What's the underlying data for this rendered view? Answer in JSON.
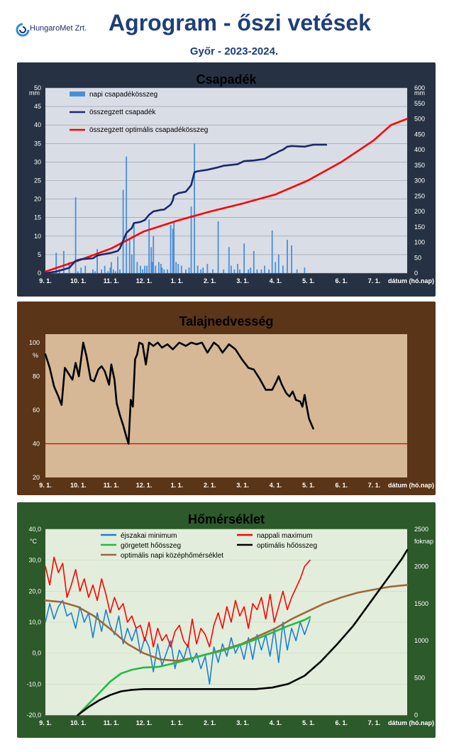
{
  "header": {
    "logo_text": "HungaroMet Zrt.",
    "title": "Agrogram - őszi vetések",
    "subtitle": "Győr - 2023-2024."
  },
  "colors": {
    "title": "#1f3f78",
    "precip_bars": "#4a8fd6",
    "precip_cumulative": "#1a2a6e",
    "precip_optimal": "#ff0000",
    "soil_line": "#000000",
    "soil_threshold": "#dd0000",
    "temp_min": "#1f7fd0",
    "temp_max": "#ff0000",
    "temp_rolling": "#22bb44",
    "temp_optimal_sum": "#000000",
    "temp_optimal_mean": "#a0683a"
  },
  "chart_data": [
    {
      "id": "precip",
      "type": "bar",
      "title": "Csapadék",
      "ylabel_left": "mm",
      "ylabel_right": "mm",
      "xlabel": "dátum (hó.nap)",
      "x_ticks": [
        "9. 1.",
        "10. 1.",
        "11. 1.",
        "12. 1.",
        "1. 1.",
        "2. 1.",
        "3. 1.",
        "4. 1.",
        "5. 1.",
        "6. 1.",
        "7. 1."
      ],
      "ylim_left": [
        0,
        50
      ],
      "yticks_left": [
        "0",
        "5",
        "10",
        "15",
        "20",
        "25",
        "30",
        "35",
        "40",
        "45",
        "50"
      ],
      "ylim_right": [
        0,
        600
      ],
      "yticks_right": [
        "0",
        "50",
        "100",
        "150",
        "200",
        "250",
        "300",
        "350",
        "400",
        "450",
        "500",
        "550",
        "600"
      ],
      "grid": true,
      "legend_position": "top-left",
      "series": [
        {
          "name": "napi csapadékösszeg",
          "type": "bar",
          "axis": "left",
          "x": [
            10,
            13,
            17,
            22,
            28,
            30,
            33,
            37,
            44,
            46,
            48,
            52,
            55,
            58,
            60,
            61,
            63,
            65,
            67,
            69,
            72,
            75,
            78,
            80,
            82,
            85,
            88,
            90,
            92,
            94,
            96,
            98,
            99,
            100,
            102,
            105,
            107,
            108,
            110,
            113,
            116,
            118,
            119,
            121,
            123,
            126,
            130,
            133,
            135,
            138,
            141,
            144,
            146,
            150,
            155,
            160,
            165,
            170,
            172,
            175,
            178,
            180,
            184,
            188,
            190,
            193,
            196,
            200,
            203,
            207,
            210,
            213,
            216,
            220,
            224,
            228,
            233,
            240
          ],
          "y": [
            5.5,
            1.0,
            6.0,
            3.0,
            20.5,
            0.5,
            1.5,
            2.0,
            1.0,
            0.5,
            6.5,
            1.0,
            2.0,
            0.5,
            1.5,
            3.0,
            1.0,
            0.5,
            4.5,
            1.0,
            22.5,
            31.5,
            9.0,
            5.0,
            13.5,
            3.0,
            2.0,
            1.0,
            2.0,
            2.0,
            14.5,
            7.0,
            3.0,
            10.0,
            2.0,
            3.0,
            2.5,
            1.5,
            1.0,
            1.0,
            13.0,
            12.0,
            14.0,
            3.0,
            2.5,
            2.0,
            1.0,
            1.5,
            18.0,
            35.0,
            2.0,
            1.0,
            1.5,
            2.5,
            1.0,
            14.0,
            1.0,
            7.0,
            2.0,
            1.0,
            2.5,
            1.0,
            8.0,
            1.0,
            1.5,
            6.0,
            1.0,
            1.0,
            2.0,
            1.0,
            11.5,
            3.0,
            5.0,
            2.0,
            9.0,
            7.5,
            1.0,
            1.5
          ]
        },
        {
          "name": "összegzett csapadék",
          "type": "line",
          "axis": "right",
          "x": [
            0,
            10,
            17,
            22,
            28,
            33,
            44,
            48,
            52,
            60,
            65,
            67,
            69,
            72,
            75,
            78,
            80,
            82,
            88,
            92,
            96,
            100,
            107,
            110,
            116,
            118,
            119,
            121,
            123,
            130,
            135,
            138,
            141,
            150,
            160,
            165,
            170,
            178,
            184,
            193,
            203,
            210,
            213,
            216,
            220,
            224,
            228,
            240,
            248,
            255,
            260
          ],
          "y": [
            0,
            5,
            12,
            17,
            40,
            45,
            48,
            57,
            60,
            65,
            70,
            72,
            80,
            105,
            130,
            140,
            146,
            162,
            166,
            172,
            189,
            200,
            205,
            206,
            222,
            236,
            252,
            255,
            259,
            264,
            285,
            327,
            330,
            335,
            343,
            348,
            350,
            353,
            363,
            365,
            370,
            384,
            388,
            394,
            400,
            410,
            412,
            410,
            416,
            416,
            416
          ]
        },
        {
          "name": "összegzett optimális csapadékösszeg",
          "type": "line",
          "axis": "right",
          "x": [
            0,
            30,
            61,
            91,
            122,
            153,
            182,
            213,
            243,
            274,
            304,
            320,
            335
          ],
          "y": [
            5,
            40,
            80,
            135,
            170,
            200,
            225,
            255,
            300,
            360,
            430,
            480,
            500
          ]
        }
      ]
    },
    {
      "id": "soil",
      "type": "line",
      "title": "Talajnedvesség",
      "ylabel": "%",
      "xlabel": "dátum (hó.nap)",
      "x_ticks": [
        "9. 1.",
        "10. 1.",
        "11. 1.",
        "12. 1.",
        "1. 1.",
        "2. 1.",
        "3. 1.",
        "4. 1.",
        "5. 1.",
        "6. 1.",
        "7. 1."
      ],
      "ylim": [
        20,
        105
      ],
      "yticks": [
        "20",
        "40",
        "60",
        "80",
        "100"
      ],
      "threshold": 40,
      "series": [
        {
          "name": "talajnedvesség",
          "x": [
            0,
            4,
            8,
            12,
            15,
            18,
            22,
            25,
            28,
            31,
            35,
            38,
            42,
            45,
            49,
            52,
            55,
            59,
            61,
            64,
            66,
            69,
            72,
            75,
            77,
            79,
            81,
            83,
            85,
            87,
            90,
            93,
            96,
            100,
            104,
            108,
            113,
            118,
            124,
            130,
            135,
            140,
            145,
            150,
            156,
            160,
            164,
            170,
            176,
            182,
            188,
            193,
            198,
            204,
            210,
            214,
            216,
            219,
            223,
            226,
            229,
            232,
            236,
            238,
            240,
            242,
            244,
            246,
            248
          ],
          "y": [
            93,
            85,
            74,
            68,
            63,
            85,
            81,
            78,
            88,
            80,
            100,
            92,
            78,
            77,
            84,
            86,
            83,
            75,
            87,
            78,
            64,
            57,
            51,
            44,
            40,
            66,
            62,
            90,
            93,
            100,
            99,
            87,
            100,
            98,
            100,
            97,
            99,
            96,
            100,
            98,
            100,
            99,
            100,
            94,
            100,
            98,
            94,
            99,
            96,
            90,
            85,
            84,
            79,
            72,
            72,
            77,
            80,
            75,
            70,
            68,
            71,
            66,
            65,
            62,
            69,
            62,
            55,
            52,
            49
          ]
        }
      ]
    },
    {
      "id": "temp",
      "type": "line",
      "title": "Hőmérséklet",
      "ylabel_left": "°C",
      "ylabel_right": "foknap",
      "xlabel": "dátum (hó.nap)",
      "x_ticks": [
        "9. 1.",
        "10. 1.",
        "11. 1.",
        "12. 1.",
        "1. 1.",
        "2. 1.",
        "3. 1.",
        "4. 1.",
        "5. 1.",
        "6. 1.",
        "7. 1."
      ],
      "ylim_left": [
        -20,
        40
      ],
      "yticks_left": [
        "-20,0",
        "-10,0",
        "0,0",
        "10,0",
        "20,0",
        "30,0",
        "40,0"
      ],
      "ylim_right": [
        0,
        2500
      ],
      "yticks_right": [
        "0",
        "500",
        "1000",
        "1500",
        "2000",
        "2500"
      ],
      "series": [
        {
          "name": "éjszakai minimum",
          "axis": "left",
          "x": [
            0,
            4,
            8,
            12,
            16,
            20,
            24,
            28,
            32,
            36,
            40,
            44,
            48,
            52,
            56,
            60,
            64,
            68,
            72,
            76,
            80,
            84,
            88,
            92,
            96,
            100,
            104,
            108,
            112,
            116,
            120,
            124,
            128,
            132,
            136,
            140,
            144,
            148,
            152,
            156,
            160,
            164,
            168,
            172,
            176,
            180,
            184,
            188,
            192,
            196,
            200,
            204,
            208,
            212,
            216,
            220,
            224,
            228,
            232,
            236,
            240,
            245
          ],
          "y": [
            10,
            16,
            11,
            15,
            17,
            12,
            13,
            8,
            15,
            10,
            13,
            5,
            13,
            7,
            14,
            9,
            6,
            12,
            3,
            8,
            4,
            8,
            0,
            5,
            2,
            -6,
            3,
            -4,
            0,
            4,
            -5,
            1,
            -2,
            3,
            -3,
            0,
            -5,
            -1,
            -10,
            2,
            -3,
            3,
            -1,
            5,
            0,
            3,
            -2,
            5,
            -2,
            6,
            1,
            6,
            -1,
            8,
            -3,
            10,
            1,
            8,
            4,
            10,
            6,
            11
          ]
        },
        {
          "name": "nappali maximum",
          "axis": "left",
          "x": [
            0,
            4,
            8,
            12,
            16,
            20,
            24,
            28,
            32,
            36,
            40,
            44,
            48,
            52,
            56,
            60,
            64,
            68,
            72,
            76,
            80,
            84,
            88,
            92,
            96,
            100,
            104,
            108,
            112,
            116,
            120,
            124,
            128,
            132,
            136,
            140,
            144,
            148,
            152,
            156,
            160,
            164,
            168,
            172,
            176,
            180,
            184,
            188,
            192,
            196,
            200,
            204,
            208,
            212,
            216,
            220,
            224,
            228,
            232,
            236,
            240,
            245
          ],
          "y": [
            28,
            22,
            31,
            26,
            29,
            18,
            22,
            27,
            20,
            24,
            18,
            22,
            17,
            24,
            19,
            13,
            18,
            14,
            16,
            10,
            12,
            8,
            9,
            4,
            10,
            2,
            8,
            4,
            6,
            2,
            7,
            9,
            4,
            2,
            11,
            3,
            8,
            6,
            2,
            9,
            13,
            8,
            15,
            10,
            17,
            12,
            15,
            8,
            16,
            14,
            18,
            11,
            19,
            10,
            15,
            20,
            14,
            18,
            21,
            24,
            28,
            30
          ]
        },
        {
          "name": "görgetett hőösszeg",
          "axis": "right",
          "x": [
            30,
            40,
            50,
            60,
            70,
            80,
            91,
            105,
            120,
            135,
            150,
            165,
            180,
            195,
            210,
            225,
            240,
            245
          ],
          "y": [
            0,
            150,
            300,
            450,
            560,
            610,
            640,
            650,
            700,
            760,
            820,
            870,
            940,
            1020,
            1110,
            1200,
            1280,
            1320
          ]
        },
        {
          "name": "optimális hőösszeg",
          "axis": "right",
          "x": [
            30,
            40,
            50,
            60,
            70,
            80,
            91,
            105,
            120,
            135,
            150,
            165,
            180,
            195,
            210,
            225,
            240,
            255,
            270,
            285,
            300,
            315,
            330,
            335
          ],
          "y": [
            0,
            110,
            200,
            270,
            320,
            340,
            350,
            350,
            350,
            350,
            350,
            350,
            350,
            350,
            370,
            420,
            530,
            720,
            950,
            1200,
            1500,
            1800,
            2100,
            2220
          ]
        },
        {
          "name": "optimális napi középhőmérséklet",
          "axis": "left",
          "x": [
            0,
            15,
            30,
            45,
            61,
            76,
            91,
            106,
            122,
            137,
            153,
            168,
            182,
            197,
            213,
            228,
            243,
            258,
            274,
            289,
            304,
            320,
            335
          ],
          "y": [
            17,
            16.5,
            15,
            12,
            7.5,
            3,
            0,
            -2,
            -2.5,
            -1.5,
            0,
            1.5,
            3,
            5.5,
            8,
            11,
            13.5,
            16,
            18,
            19.5,
            20.5,
            21.5,
            22
          ]
        }
      ]
    }
  ]
}
